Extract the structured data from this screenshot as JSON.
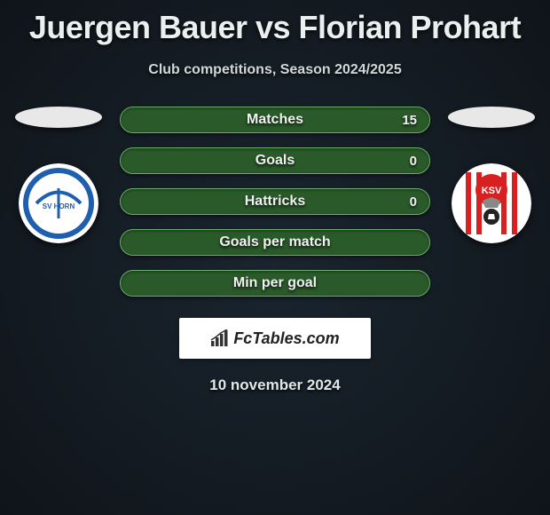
{
  "title": "Juergen Bauer vs Florian Prohart",
  "subtitle": "Club competitions, Season 2024/2025",
  "stats": [
    {
      "label": "Matches",
      "value": "15"
    },
    {
      "label": "Goals",
      "value": "0"
    },
    {
      "label": "Hattricks",
      "value": "0"
    },
    {
      "label": "Goals per match",
      "value": ""
    },
    {
      "label": "Min per goal",
      "value": ""
    }
  ],
  "left_club": {
    "name": "SV Horn",
    "bg": "#ffffff",
    "accent": "#1e5fb0",
    "text": "SV HORN"
  },
  "right_club": {
    "name": "KSV",
    "bg": "#ffffff",
    "stripe": "#d82020",
    "text": "KSV"
  },
  "brand": "FcTables.com",
  "date": "10 november 2024",
  "colors": {
    "stat_bg": "#2a5a2a",
    "stat_border": "#6ab06a"
  }
}
